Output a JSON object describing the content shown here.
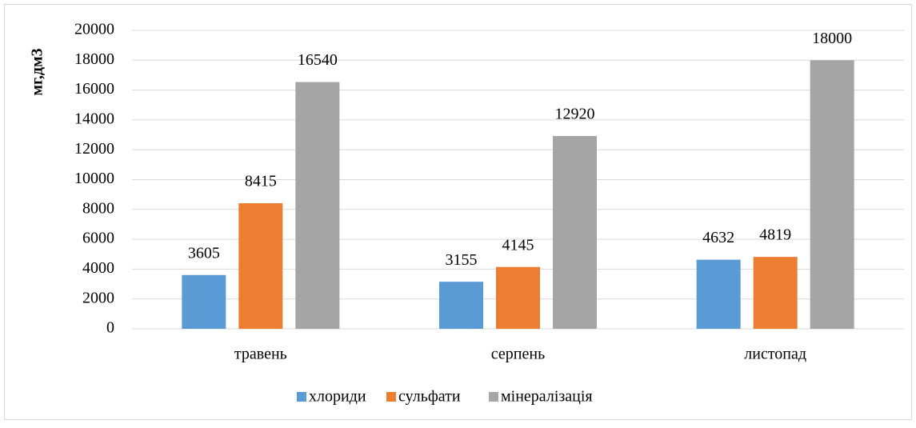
{
  "chart_data": {
    "type": "bar",
    "y_label": "мг,дм3",
    "categories": [
      "травень",
      "серпень",
      "листопад"
    ],
    "series": [
      {
        "name": "хлориди",
        "color": "#5b9bd5",
        "values": [
          3605,
          3155,
          4632
        ]
      },
      {
        "name": "сульфати",
        "color": "#ed7d31",
        "values": [
          8415,
          4145,
          4819
        ]
      },
      {
        "name": "мінералізація",
        "color": "#a5a5a5",
        "values": [
          16540,
          12920,
          18000
        ]
      }
    ],
    "ylim": [
      0,
      20000
    ],
    "yticks": [
      0,
      2000,
      4000,
      6000,
      8000,
      10000,
      12000,
      14000,
      16000,
      18000,
      20000
    ],
    "grid": true,
    "legend": "bottom"
  }
}
